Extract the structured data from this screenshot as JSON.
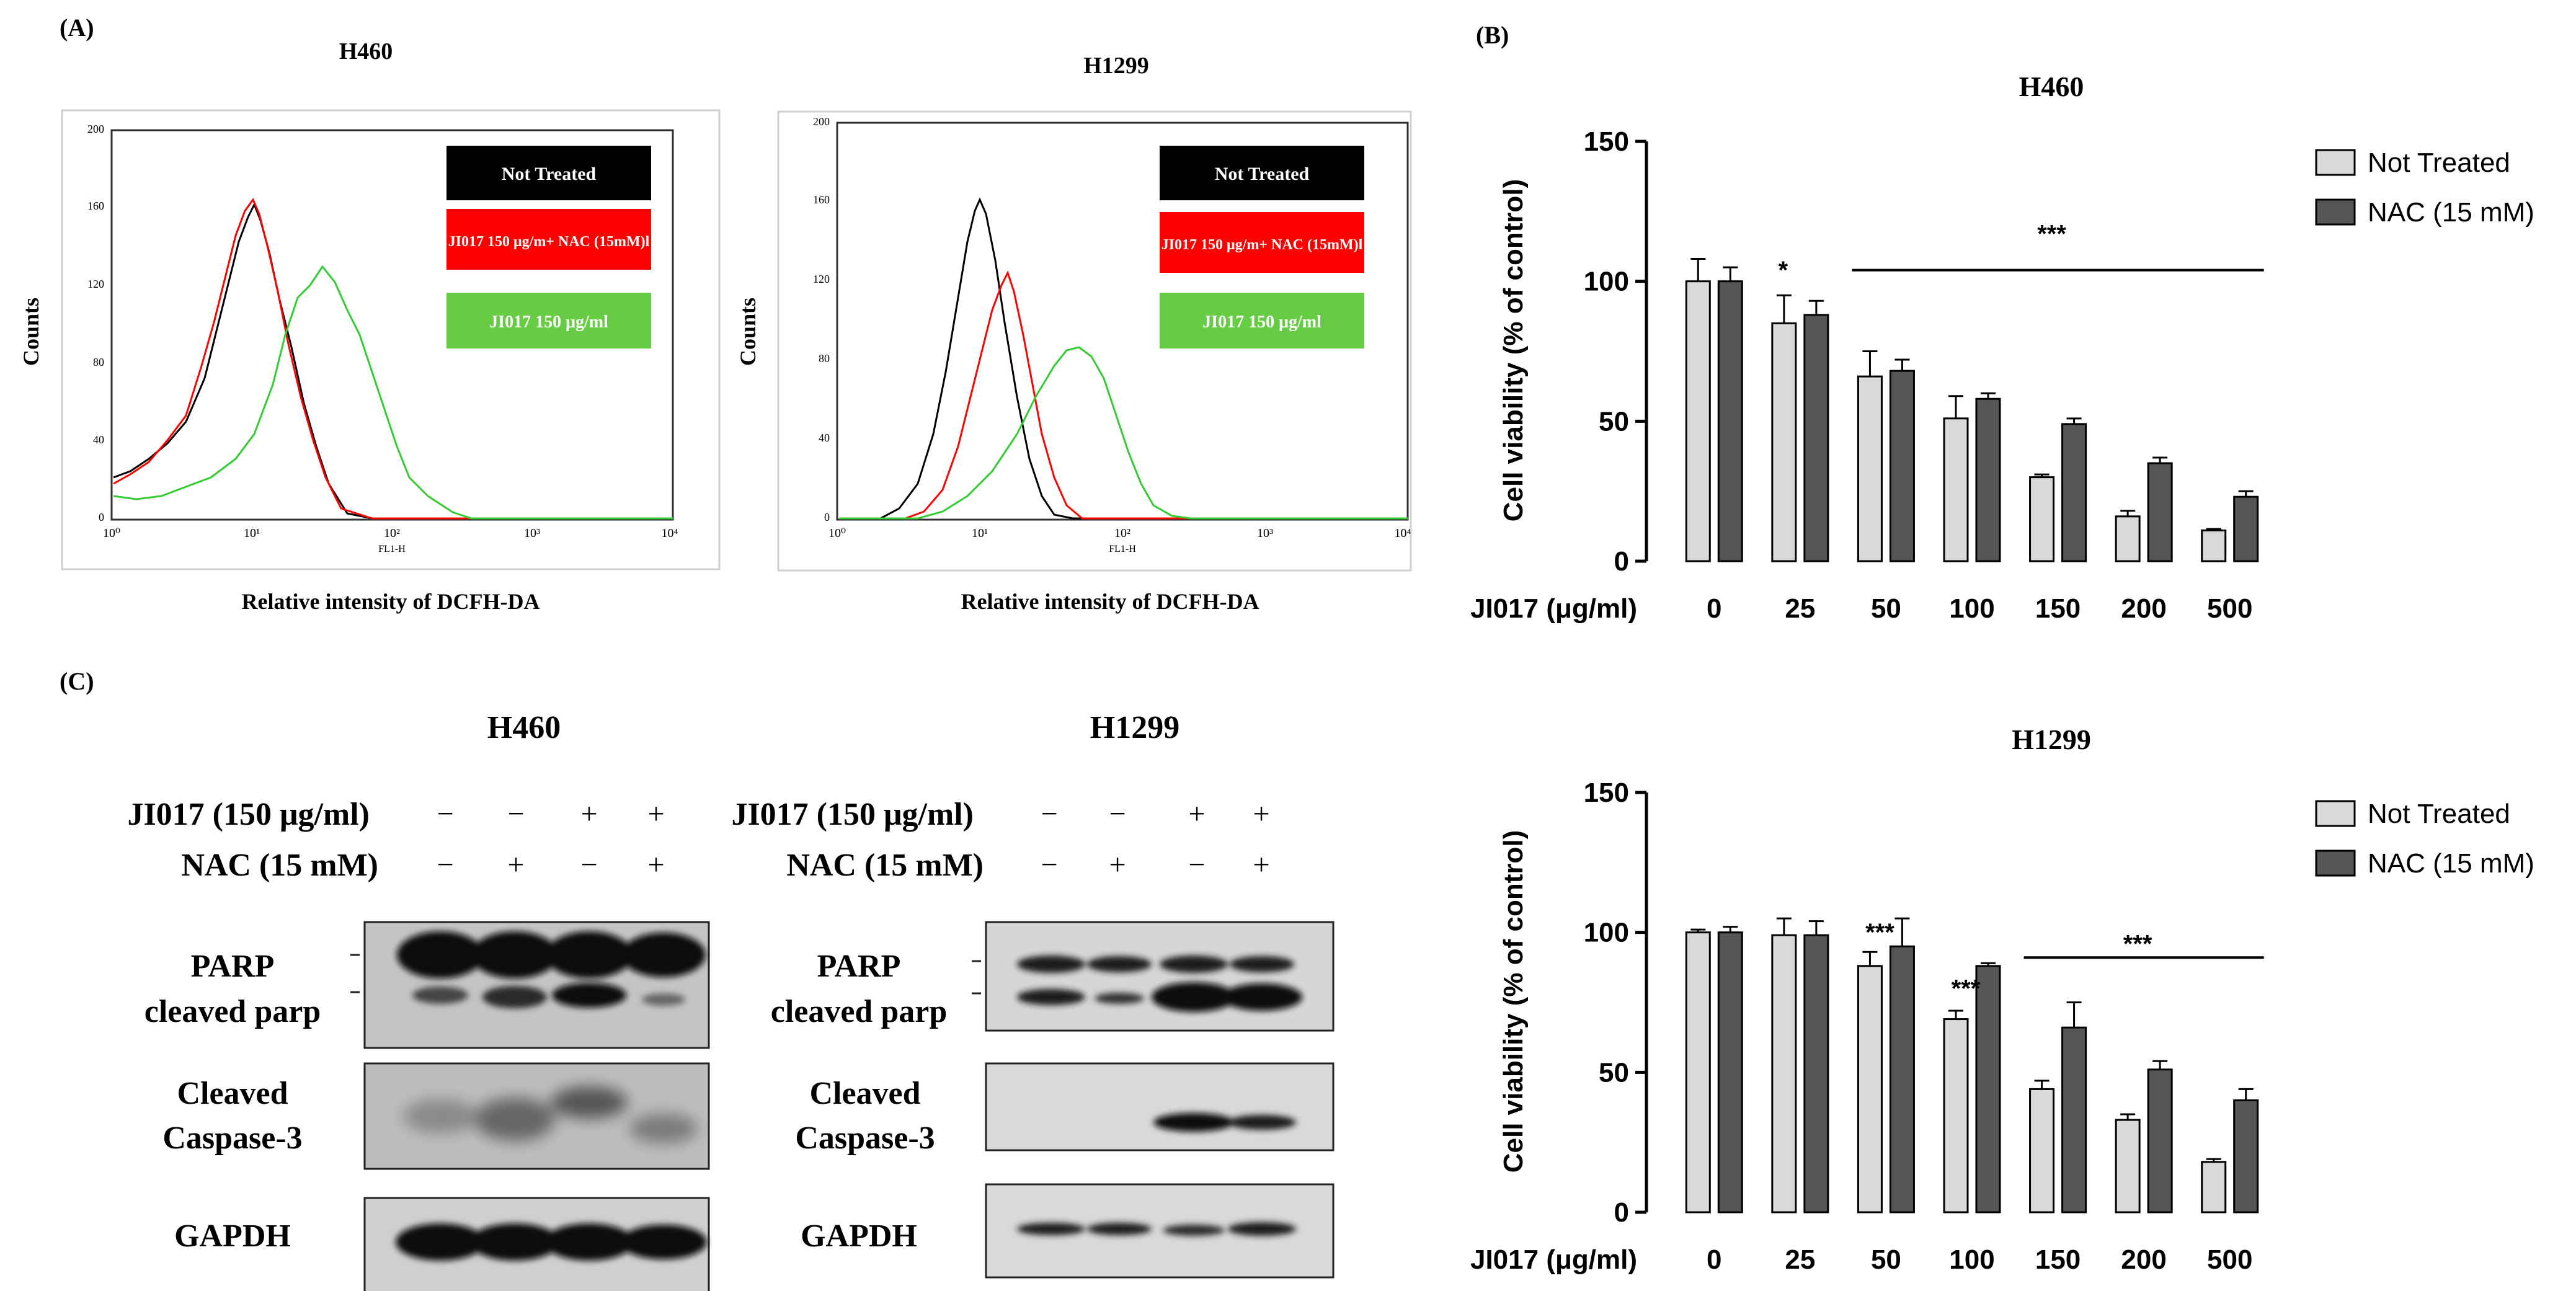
{
  "panel_labels": {
    "a": "(A)",
    "b": "(B)",
    "c": "(C)"
  },
  "flow": {
    "panels": [
      {
        "title": "H460",
        "ylabel": "Counts",
        "xlabel": "Relative intensity of DCFH-DA",
        "channel": "FL1-H",
        "yticks": [
          "0",
          "40",
          "80",
          "120",
          "160",
          "200"
        ],
        "xticks": [
          "10⁰",
          "10¹",
          "10²",
          "10³",
          "10⁴"
        ],
        "legend": [
          {
            "label": "Not Treated",
            "bg": "#000000",
            "fg": "#ffffff"
          },
          {
            "label": "JI017 150 μg/m+ NAC (15mM)l",
            "bg": "#ff0000",
            "fg": "#ffffff"
          },
          {
            "label": "JI017 150 μg/ml",
            "bg": "#66cc44",
            "fg": "#ffffff"
          }
        ]
      },
      {
        "title": "H1299",
        "ylabel": "Counts",
        "xlabel": "Relative intensity of DCFH-DA",
        "channel": "FL1-H",
        "yticks": [
          "0",
          "40",
          "80",
          "120",
          "160",
          "200"
        ],
        "xticks": [
          "10⁰",
          "10¹",
          "10²",
          "10³",
          "10⁴"
        ],
        "legend": [
          {
            "label": "Not Treated",
            "bg": "#000000",
            "fg": "#ffffff"
          },
          {
            "label": "JI017 150 μg/m+ NAC (15mM)l",
            "bg": "#ff0000",
            "fg": "#ffffff"
          },
          {
            "label": "JI017 150 μg/ml",
            "bg": "#66cc44",
            "fg": "#ffffff"
          }
        ]
      }
    ]
  },
  "western": {
    "panels": [
      {
        "title": "H460",
        "row_labels": [
          "JI017 (150 μg/ml)",
          "NAC (15 mM)"
        ],
        "signs": [
          [
            "−",
            "−",
            "+",
            "+"
          ],
          [
            "−",
            "+",
            "−",
            "+"
          ]
        ],
        "blots": [
          "PARP",
          "cleaved parp",
          "Cleaved",
          "Caspase-3",
          "GAPDH"
        ]
      },
      {
        "title": "H1299",
        "row_labels": [
          "JI017 (150 μg/ml)",
          "NAC (15 mM)"
        ],
        "signs": [
          [
            "−",
            "−",
            "+",
            "+"
          ],
          [
            "−",
            "+",
            "−",
            "+"
          ]
        ],
        "blots": [
          "PARP",
          "cleaved parp",
          "Cleaved",
          "Caspase-3",
          "GAPDH"
        ]
      }
    ]
  },
  "chart_data": [
    {
      "type": "bar",
      "title": "H460",
      "xlabel": "JI017 (μg/ml)",
      "ylabel": "Cell viability (% of control)",
      "categories": [
        "0",
        "25",
        "50",
        "100",
        "150",
        "200",
        "500"
      ],
      "ylim": [
        0,
        150
      ],
      "yticks": [
        "0",
        "50",
        "100",
        "150"
      ],
      "series": [
        {
          "name": "Not Treated",
          "color": "#d9d9d9",
          "values": [
            100,
            85,
            66,
            51,
            30,
            16,
            11
          ],
          "errors": [
            8,
            10,
            9,
            8,
            1,
            2,
            0.5
          ]
        },
        {
          "name": "NAC (15 mM)",
          "color": "#555555",
          "values": [
            100,
            88,
            68,
            58,
            49,
            35,
            23
          ],
          "errors": [
            5,
            5,
            4,
            2,
            2,
            2,
            2
          ]
        }
      ],
      "annotations": [
        {
          "text": "*",
          "category": "25",
          "value": 101
        },
        {
          "text": "***",
          "category": "150",
          "value": 114
        }
      ],
      "bracket": {
        "from": "50",
        "to": "500",
        "value": 104
      }
    },
    {
      "type": "bar",
      "title": "H1299",
      "xlabel": "JI017 (μg/ml)",
      "ylabel": "Cell viability (% of control)",
      "categories": [
        "0",
        "25",
        "50",
        "100",
        "150",
        "200",
        "500"
      ],
      "ylim": [
        0,
        150
      ],
      "yticks": [
        "0",
        "50",
        "100",
        "150"
      ],
      "series": [
        {
          "name": "Not Treated",
          "color": "#d9d9d9",
          "values": [
            100,
            99,
            88,
            69,
            44,
            33,
            18
          ],
          "errors": [
            1,
            6,
            5,
            3,
            3,
            2,
            1
          ]
        },
        {
          "name": "NAC (15 mM)",
          "color": "#555555",
          "values": [
            100,
            99,
            95,
            88,
            66,
            51,
            40
          ],
          "errors": [
            2,
            5,
            10,
            1,
            9,
            3,
            4
          ]
        }
      ],
      "annotations": [
        {
          "text": "***",
          "category": "50",
          "value": 97
        },
        {
          "text": "***",
          "category": "100",
          "value": 77
        },
        {
          "text": "***",
          "category": "200",
          "value": 93
        }
      ],
      "bracket": {
        "from": "150",
        "to": "500",
        "value": 91
      }
    }
  ]
}
